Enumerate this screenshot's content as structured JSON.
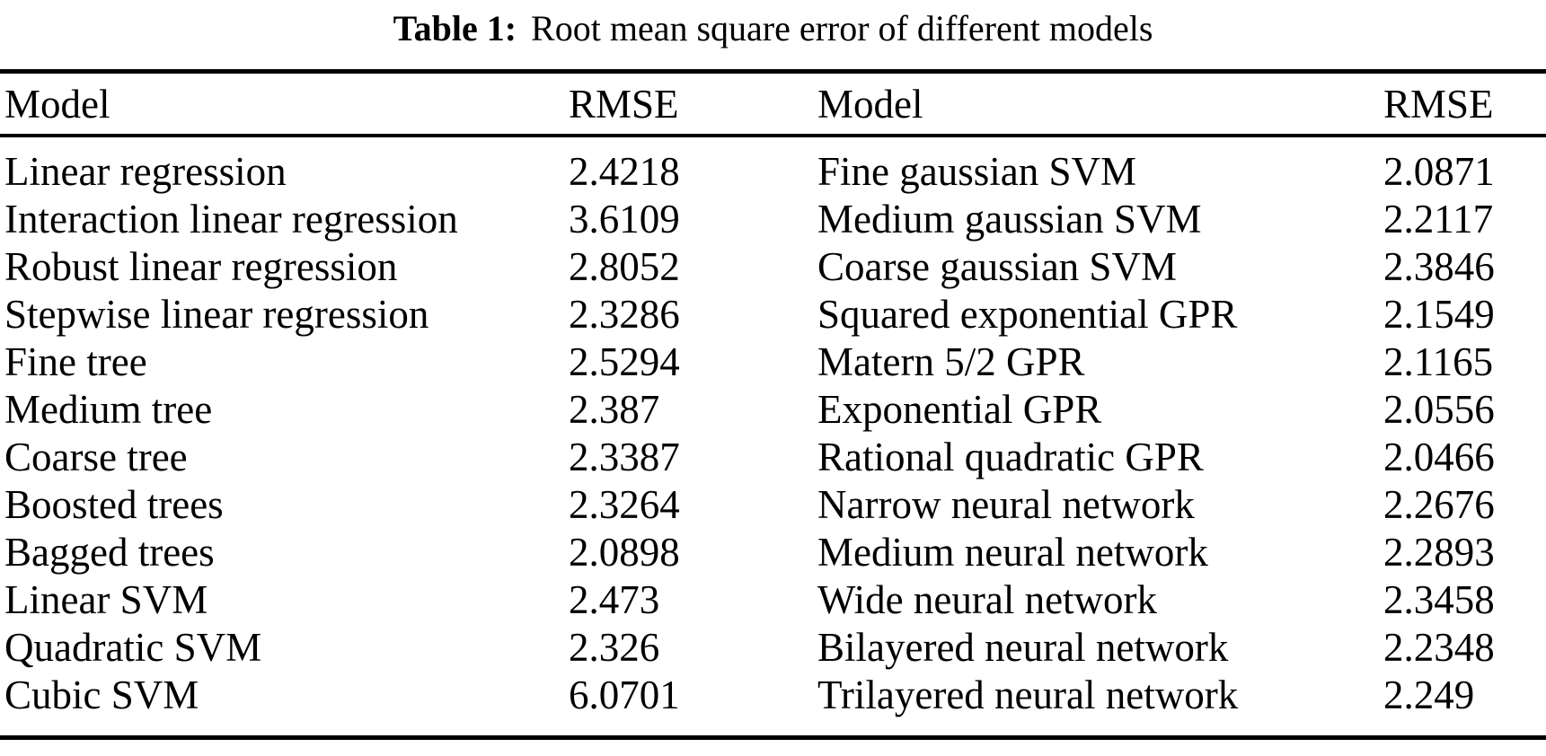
{
  "page": {
    "background_color": "#ffffff",
    "text_color": "#000000"
  },
  "caption": {
    "label": "Table 1:",
    "title": "Root mean square error of different models"
  },
  "table": {
    "headers": {
      "model_left": "Model",
      "rmse_left": "RMSE",
      "model_right": "Model",
      "rmse_right": "RMSE"
    },
    "rows": [
      {
        "model_left": "Linear regression",
        "rmse_left": "2.4218",
        "model_right": "Fine gaussian SVM",
        "rmse_right": "2.0871"
      },
      {
        "model_left": "Interaction linear regression",
        "rmse_left": "3.6109",
        "model_right": "Medium gaussian SVM",
        "rmse_right": "2.2117"
      },
      {
        "model_left": "Robust linear regression",
        "rmse_left": "2.8052",
        "model_right": "Coarse gaussian SVM",
        "rmse_right": "2.3846"
      },
      {
        "model_left": "Stepwise linear regression",
        "rmse_left": "2.3286",
        "model_right": "Squared exponential GPR",
        "rmse_right": "2.1549"
      },
      {
        "model_left": "Fine tree",
        "rmse_left": "2.5294",
        "model_right": "Matern 5/2 GPR",
        "rmse_right": "2.1165"
      },
      {
        "model_left": "Medium tree",
        "rmse_left": "2.387",
        "model_right": "Exponential GPR",
        "rmse_right": "2.0556"
      },
      {
        "model_left": "Coarse tree",
        "rmse_left": "2.3387",
        "model_right": "Rational quadratic GPR",
        "rmse_right": "2.0466"
      },
      {
        "model_left": "Boosted trees",
        "rmse_left": "2.3264",
        "model_right": "Narrow neural network",
        "rmse_right": "2.2676"
      },
      {
        "model_left": "Bagged trees",
        "rmse_left": "2.0898",
        "model_right": "Medium neural network",
        "rmse_right": "2.2893"
      },
      {
        "model_left": "Linear SVM",
        "rmse_left": "2.473",
        "model_right": "Wide neural network",
        "rmse_right": "2.3458"
      },
      {
        "model_left": "Quadratic SVM",
        "rmse_left": "2.326",
        "model_right": "Bilayered neural network",
        "rmse_right": "2.2348"
      },
      {
        "model_left": "Cubic SVM",
        "rmse_left": "6.0701",
        "model_right": "Trilayered neural network",
        "rmse_right": "2.249"
      }
    ]
  }
}
